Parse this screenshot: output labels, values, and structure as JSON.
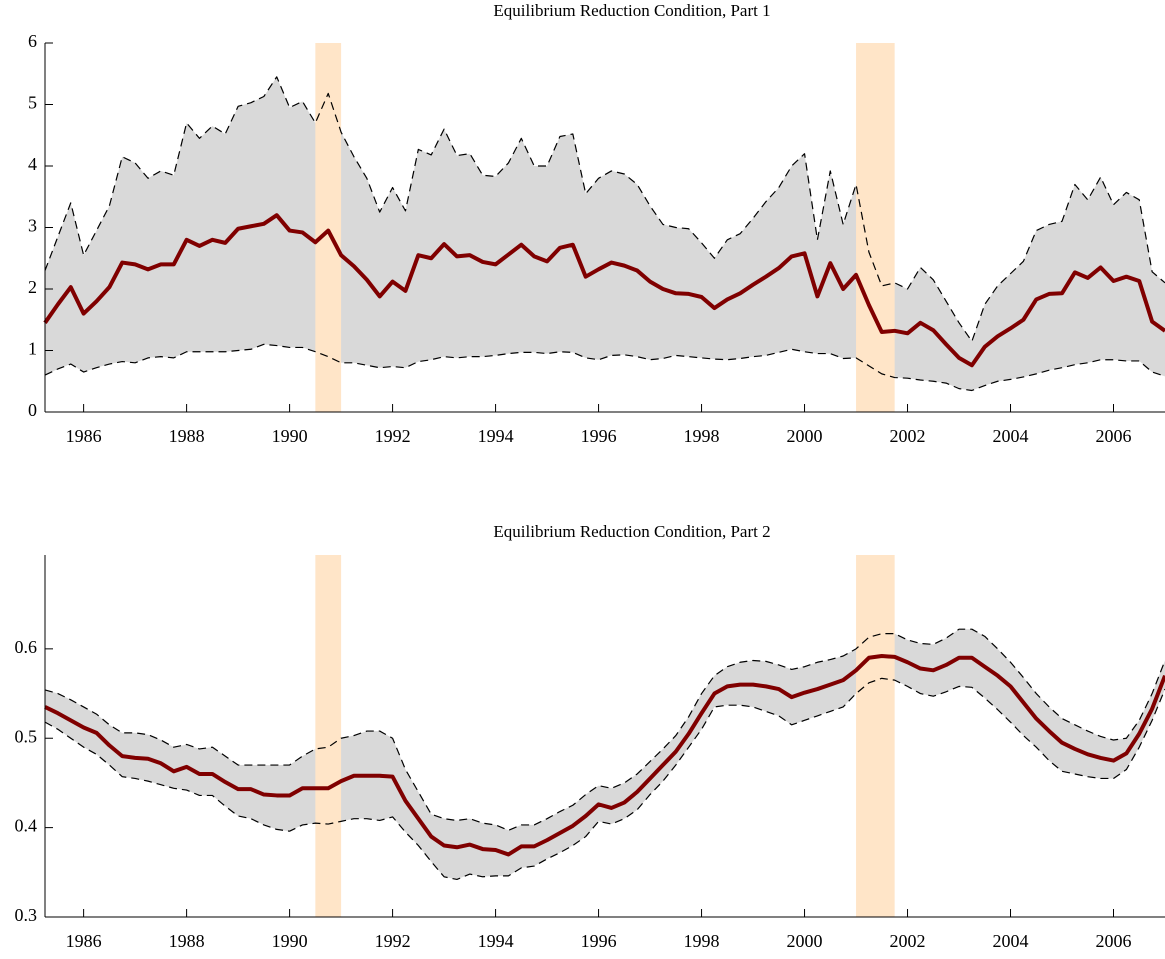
{
  "chart_data": [
    {
      "type": "line",
      "title": "Equilibrium Reduction Condition, Part 1",
      "x": [
        1985.25,
        1985.5,
        1985.75,
        1986,
        1986.25,
        1986.5,
        1986.75,
        1987,
        1987.25,
        1987.5,
        1987.75,
        1988,
        1988.25,
        1988.5,
        1988.75,
        1989,
        1989.25,
        1989.5,
        1989.75,
        1990,
        1990.25,
        1990.5,
        1990.75,
        1991,
        1991.25,
        1991.5,
        1991.75,
        1992,
        1992.25,
        1992.5,
        1992.75,
        1993,
        1993.25,
        1993.5,
        1993.75,
        1994,
        1994.25,
        1994.5,
        1994.75,
        1995,
        1995.25,
        1995.5,
        1995.75,
        1996,
        1996.25,
        1996.5,
        1996.75,
        1997,
        1997.25,
        1997.5,
        1997.75,
        1998,
        1998.25,
        1998.5,
        1998.75,
        1999,
        1999.25,
        1999.5,
        1999.75,
        2000,
        2000.25,
        2000.5,
        2000.75,
        2001,
        2001.25,
        2001.5,
        2001.75,
        2002,
        2002.25,
        2002.5,
        2002.75,
        2003,
        2003.25,
        2003.5,
        2003.75,
        2004,
        2004.25,
        2004.5,
        2004.75,
        2005,
        2005.25,
        2005.5,
        2005.75,
        2006,
        2006.25,
        2006.5,
        2006.75,
        2007
      ],
      "xlim": [
        1985.25,
        2007
      ],
      "xticks": [
        1986,
        1988,
        1990,
        1992,
        1994,
        1996,
        1998,
        2000,
        2002,
        2004,
        2006
      ],
      "ylim": [
        0,
        6
      ],
      "yticks": [
        0,
        1,
        2,
        3,
        4,
        5,
        6
      ],
      "shading": {
        "color": "#ffe5c8",
        "spans": [
          [
            1990.5,
            1991
          ],
          [
            2001,
            2001.75
          ]
        ]
      },
      "band_color": "#d9d9d9",
      "series": [
        {
          "color": "#000000",
          "style": "dashed",
          "values": [
            0.6,
            0.7,
            0.78,
            0.65,
            0.72,
            0.78,
            0.82,
            0.8,
            0.88,
            0.9,
            0.88,
            0.98,
            0.98,
            0.98,
            0.98,
            1.0,
            1.02,
            1.1,
            1.08,
            1.05,
            1.05,
            0.98,
            0.9,
            0.8,
            0.8,
            0.76,
            0.72,
            0.74,
            0.72,
            0.82,
            0.85,
            0.9,
            0.88,
            0.9,
            0.9,
            0.92,
            0.95,
            0.97,
            0.97,
            0.95,
            0.98,
            0.97,
            0.88,
            0.85,
            0.92,
            0.93,
            0.9,
            0.85,
            0.87,
            0.92,
            0.9,
            0.88,
            0.86,
            0.85,
            0.87,
            0.9,
            0.92,
            0.97,
            1.02,
            0.98,
            0.95,
            0.95,
            0.87,
            0.88,
            0.75,
            0.62,
            0.56,
            0.55,
            0.52,
            0.5,
            0.47,
            0.38,
            0.35,
            0.43,
            0.5,
            0.53,
            0.57,
            0.62,
            0.68,
            0.72,
            0.77,
            0.8,
            0.85,
            0.85,
            0.83,
            0.83,
            0.65,
            0.58
          ]
        },
        {
          "color": "#000000",
          "style": "dashed",
          "values": [
            2.3,
            2.85,
            3.4,
            2.55,
            2.95,
            3.35,
            4.15,
            4.05,
            3.8,
            3.92,
            3.85,
            4.7,
            4.45,
            4.65,
            4.52,
            4.97,
            5.03,
            5.13,
            5.45,
            4.95,
            5.05,
            4.7,
            5.18,
            4.55,
            4.15,
            3.8,
            3.25,
            3.65,
            3.27,
            4.27,
            4.18,
            4.6,
            4.17,
            4.2,
            3.85,
            3.83,
            4.05,
            4.45,
            4.0,
            4.0,
            4.48,
            4.52,
            3.55,
            3.8,
            3.92,
            3.87,
            3.7,
            3.35,
            3.05,
            3.0,
            2.98,
            2.75,
            2.5,
            2.8,
            2.9,
            3.15,
            3.42,
            3.65,
            4.0,
            4.2,
            2.8,
            3.92,
            3.05,
            3.7,
            2.6,
            2.05,
            2.1,
            2.0,
            2.35,
            2.15,
            1.8,
            1.45,
            1.15,
            1.75,
            2.05,
            2.25,
            2.45,
            2.95,
            3.05,
            3.1,
            3.7,
            3.45,
            3.82,
            3.37,
            3.57,
            3.45,
            2.28,
            2.1
          ]
        },
        {
          "color": "#800000",
          "style": "solid",
          "values": [
            1.45,
            1.75,
            2.03,
            1.6,
            1.8,
            2.03,
            2.43,
            2.4,
            2.32,
            2.4,
            2.4,
            2.8,
            2.7,
            2.8,
            2.75,
            2.98,
            3.02,
            3.06,
            3.2,
            2.95,
            2.92,
            2.76,
            2.95,
            2.55,
            2.37,
            2.15,
            1.88,
            2.12,
            1.97,
            2.55,
            2.5,
            2.73,
            2.53,
            2.55,
            2.44,
            2.4,
            2.56,
            2.72,
            2.53,
            2.45,
            2.67,
            2.72,
            2.2,
            2.32,
            2.43,
            2.38,
            2.3,
            2.12,
            2.0,
            1.93,
            1.92,
            1.87,
            1.69,
            1.83,
            1.93,
            2.07,
            2.2,
            2.34,
            2.53,
            2.58,
            1.88,
            2.42,
            2.0,
            2.23,
            1.74,
            1.3,
            1.32,
            1.28,
            1.45,
            1.33,
            1.1,
            0.88,
            0.76,
            1.06,
            1.23,
            1.36,
            1.5,
            1.83,
            1.92,
            1.93,
            2.27,
            2.18,
            2.35,
            2.13,
            2.2,
            2.13,
            1.47,
            1.32
          ]
        }
      ]
    },
    {
      "type": "line",
      "title": "Equilibrium Reduction Condition, Part 2",
      "x": [
        1985.25,
        1985.5,
        1985.75,
        1986,
        1986.25,
        1986.5,
        1986.75,
        1987,
        1987.25,
        1987.5,
        1987.75,
        1988,
        1988.25,
        1988.5,
        1988.75,
        1989,
        1989.25,
        1989.5,
        1989.75,
        1990,
        1990.25,
        1990.5,
        1990.75,
        1991,
        1991.25,
        1991.5,
        1991.75,
        1992,
        1992.25,
        1992.5,
        1992.75,
        1993,
        1993.25,
        1993.5,
        1993.75,
        1994,
        1994.25,
        1994.5,
        1994.75,
        1995,
        1995.25,
        1995.5,
        1995.75,
        1996,
        1996.25,
        1996.5,
        1996.75,
        1997,
        1997.25,
        1997.5,
        1997.75,
        1998,
        1998.25,
        1998.5,
        1998.75,
        1999,
        1999.25,
        1999.5,
        1999.75,
        2000,
        2000.25,
        2000.5,
        2000.75,
        2001,
        2001.25,
        2001.5,
        2001.75,
        2002,
        2002.25,
        2002.5,
        2002.75,
        2003,
        2003.25,
        2003.5,
        2003.75,
        2004,
        2004.25,
        2004.5,
        2004.75,
        2005,
        2005.25,
        2005.5,
        2005.75,
        2006,
        2006.25,
        2006.5,
        2006.75,
        2007
      ],
      "xlim": [
        1985.25,
        2007
      ],
      "xticks": [
        1986,
        1988,
        1990,
        1992,
        1994,
        1996,
        1998,
        2000,
        2002,
        2004,
        2006
      ],
      "ylim": [
        0.3,
        0.705
      ],
      "yticks": [
        0.3,
        0.4,
        0.5,
        0.6
      ],
      "shading": {
        "color": "#ffe5c8",
        "spans": [
          [
            1990.5,
            1991
          ],
          [
            2001,
            2001.75
          ]
        ]
      },
      "band_color": "#d9d9d9",
      "series": [
        {
          "color": "#000000",
          "style": "dashed",
          "values": [
            0.518,
            0.51,
            0.5,
            0.49,
            0.482,
            0.47,
            0.457,
            0.455,
            0.452,
            0.448,
            0.444,
            0.442,
            0.436,
            0.436,
            0.424,
            0.413,
            0.41,
            0.403,
            0.398,
            0.396,
            0.403,
            0.405,
            0.404,
            0.407,
            0.41,
            0.41,
            0.408,
            0.412,
            0.395,
            0.38,
            0.362,
            0.345,
            0.342,
            0.348,
            0.345,
            0.346,
            0.346,
            0.355,
            0.357,
            0.365,
            0.372,
            0.38,
            0.39,
            0.407,
            0.404,
            0.41,
            0.42,
            0.437,
            0.452,
            0.47,
            0.49,
            0.51,
            0.535,
            0.537,
            0.537,
            0.535,
            0.53,
            0.525,
            0.515,
            0.52,
            0.525,
            0.53,
            0.535,
            0.55,
            0.562,
            0.567,
            0.565,
            0.558,
            0.55,
            0.547,
            0.552,
            0.558,
            0.557,
            0.545,
            0.532,
            0.518,
            0.503,
            0.49,
            0.475,
            0.463,
            0.46,
            0.457,
            0.455,
            0.455,
            0.465,
            0.49,
            0.52,
            0.555
          ]
        },
        {
          "color": "#000000",
          "style": "dashed",
          "values": [
            0.554,
            0.55,
            0.543,
            0.535,
            0.527,
            0.515,
            0.506,
            0.506,
            0.504,
            0.498,
            0.49,
            0.493,
            0.488,
            0.49,
            0.48,
            0.47,
            0.47,
            0.47,
            0.47,
            0.47,
            0.48,
            0.488,
            0.49,
            0.5,
            0.503,
            0.508,
            0.508,
            0.5,
            0.465,
            0.44,
            0.415,
            0.41,
            0.408,
            0.41,
            0.405,
            0.403,
            0.397,
            0.403,
            0.403,
            0.41,
            0.418,
            0.425,
            0.437,
            0.447,
            0.444,
            0.45,
            0.46,
            0.474,
            0.488,
            0.503,
            0.524,
            0.55,
            0.57,
            0.58,
            0.585,
            0.587,
            0.586,
            0.582,
            0.577,
            0.58,
            0.585,
            0.588,
            0.592,
            0.6,
            0.613,
            0.617,
            0.617,
            0.61,
            0.606,
            0.605,
            0.612,
            0.622,
            0.622,
            0.614,
            0.6,
            0.585,
            0.568,
            0.55,
            0.535,
            0.522,
            0.515,
            0.508,
            0.502,
            0.498,
            0.5,
            0.52,
            0.55,
            0.587
          ]
        },
        {
          "color": "#800000",
          "style": "solid",
          "values": [
            0.535,
            0.528,
            0.52,
            0.512,
            0.506,
            0.492,
            0.48,
            0.478,
            0.477,
            0.472,
            0.463,
            0.468,
            0.46,
            0.46,
            0.451,
            0.443,
            0.443,
            0.437,
            0.436,
            0.436,
            0.444,
            0.444,
            0.444,
            0.452,
            0.458,
            0.458,
            0.458,
            0.457,
            0.43,
            0.41,
            0.39,
            0.38,
            0.378,
            0.381,
            0.376,
            0.375,
            0.37,
            0.379,
            0.379,
            0.386,
            0.394,
            0.402,
            0.413,
            0.426,
            0.422,
            0.428,
            0.44,
            0.455,
            0.47,
            0.485,
            0.505,
            0.528,
            0.55,
            0.558,
            0.56,
            0.56,
            0.558,
            0.555,
            0.546,
            0.551,
            0.555,
            0.56,
            0.565,
            0.576,
            0.59,
            0.592,
            0.591,
            0.585,
            0.578,
            0.576,
            0.582,
            0.59,
            0.59,
            0.58,
            0.57,
            0.558,
            0.54,
            0.522,
            0.508,
            0.495,
            0.488,
            0.482,
            0.478,
            0.475,
            0.483,
            0.505,
            0.533,
            0.57
          ]
        }
      ]
    }
  ]
}
